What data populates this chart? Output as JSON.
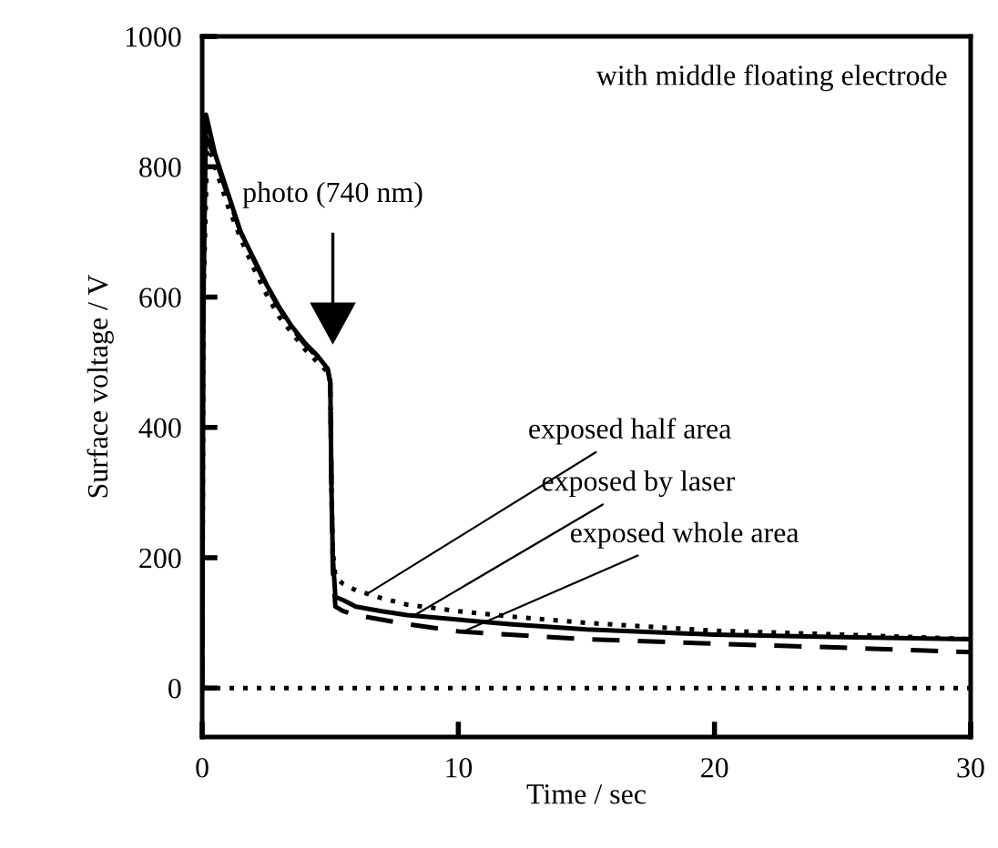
{
  "chart_data": {
    "type": "line",
    "xlabel": "Time / sec",
    "ylabel": "Surface voltage / V",
    "xlim": [
      0,
      30
    ],
    "ylim": [
      -75,
      1000
    ],
    "xticks": [
      0,
      10,
      20,
      30
    ],
    "yticks": [
      0,
      200,
      400,
      600,
      800,
      1000
    ],
    "grid": false,
    "marker": "none",
    "series": [
      {
        "color": "#000000",
        "line_style": "dotted",
        "x": [
          0,
          0.05,
          0.2,
          0.5,
          1,
          1.5,
          2,
          2.5,
          3,
          3.5,
          4,
          4.5,
          4.9,
          5.0,
          5.05,
          5.1,
          5.2,
          5.5,
          6,
          7,
          8,
          10,
          12,
          15,
          20,
          25,
          30
        ],
        "values": [
          0,
          600,
          840,
          800,
          740,
          690,
          645,
          605,
          570,
          545,
          520,
          500,
          485,
          470,
          300,
          210,
          170,
          160,
          150,
          138,
          128,
          118,
          110,
          100,
          88,
          82,
          75
        ]
      },
      {
        "color": "#000000",
        "line_style": "solid",
        "x": [
          0,
          0.05,
          0.15,
          0.5,
          1,
          1.5,
          2,
          2.5,
          3,
          3.5,
          4,
          4.5,
          4.9,
          5.0,
          5.05,
          5.1,
          5.2,
          5.5,
          6,
          7,
          8,
          10,
          12,
          15,
          20,
          25,
          30
        ],
        "values": [
          0,
          600,
          880,
          820,
          760,
          700,
          660,
          620,
          585,
          555,
          530,
          510,
          490,
          470,
          300,
          200,
          140,
          135,
          125,
          118,
          112,
          105,
          98,
          90,
          82,
          78,
          75
        ]
      },
      {
        "color": "#000000",
        "line_style": "dashed",
        "x": [
          0,
          0.02,
          0.1,
          0.5,
          1,
          1.5,
          2,
          2.5,
          3,
          3.5,
          4,
          4.5,
          4.9,
          5.0,
          5.05,
          5.1,
          5.2,
          5.5,
          6,
          7,
          8,
          10,
          12,
          15,
          20,
          25,
          30
        ],
        "values": [
          0,
          500,
          850,
          815,
          755,
          700,
          658,
          618,
          583,
          553,
          528,
          508,
          488,
          468,
          300,
          180,
          125,
          118,
          112,
          105,
          98,
          87,
          82,
          75,
          68,
          62,
          55
        ]
      }
    ],
    "ref_lines": [
      {
        "axis": "y",
        "value": 0,
        "line_style": "dotted",
        "color": "#000000"
      }
    ],
    "annotations": [
      "with middle floating electrode",
      "photo (740 nm)",
      {
        "text": "exposed half area",
        "x": 6.5,
        "y": 146
      },
      {
        "text": "exposed by laser",
        "x": 8.3,
        "y": 112
      },
      {
        "text": "exposed whole area",
        "x": 10.2,
        "y": 87
      }
    ]
  }
}
